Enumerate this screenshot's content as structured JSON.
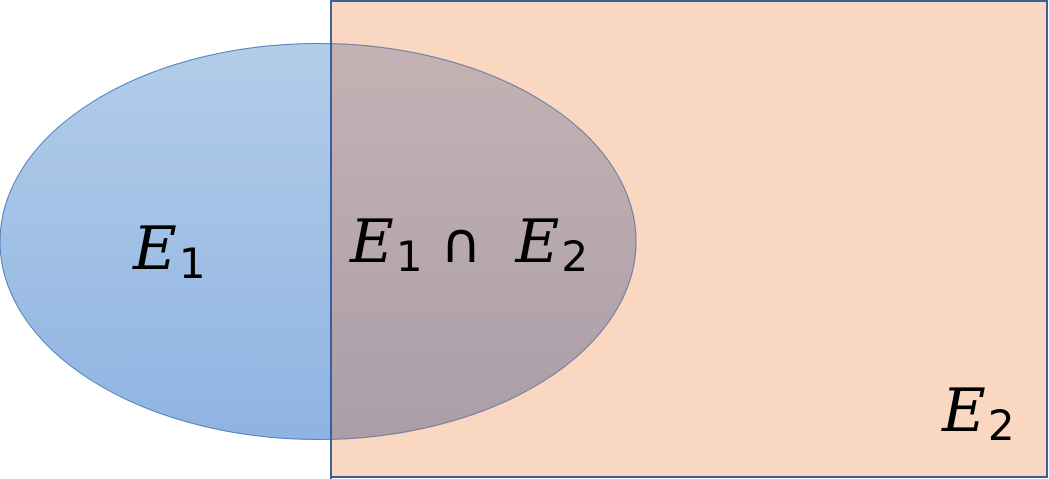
{
  "diagram": {
    "set_e1": {
      "symbol": "E",
      "subscript": "1"
    },
    "set_e2": {
      "symbol": "E",
      "subscript": "2"
    },
    "intersection": {
      "left_symbol": "E",
      "left_subscript": "1",
      "operator": "∩",
      "right_symbol": "E",
      "right_subscript": "2"
    }
  },
  "colors": {
    "set_e1_fill_top": "#b3cde9",
    "set_e1_fill_bottom": "#8fb3e2",
    "set_e1_stroke": "#4f81bd",
    "set_e2_fill": "#fad7c1",
    "set_e2_stroke": "#3b5f9a",
    "overlap_fill_top": "#c4b2b4",
    "overlap_fill_bottom": "#ab9ea8"
  }
}
